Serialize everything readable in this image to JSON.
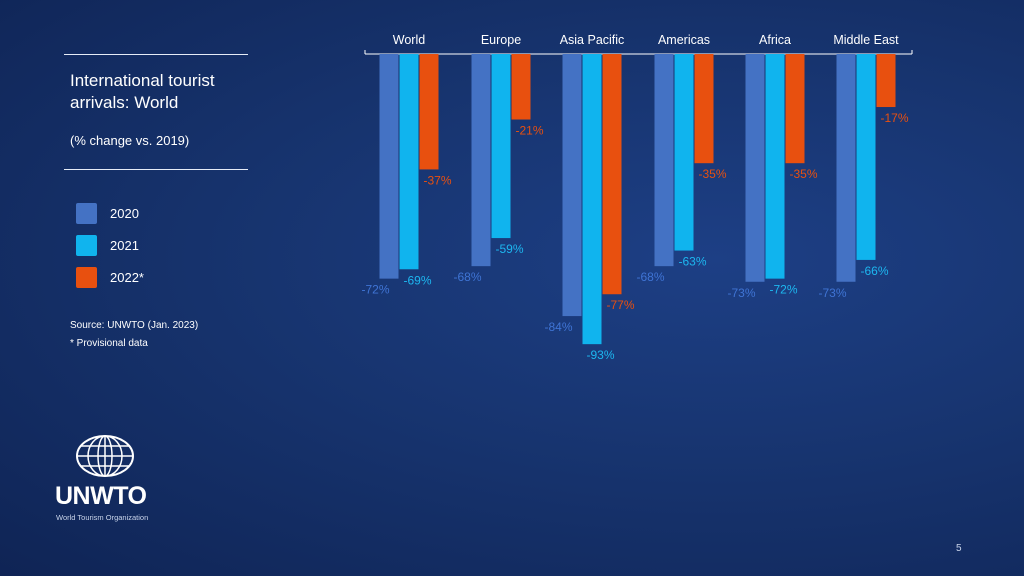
{
  "slide": {
    "title": "International tourist arrivals: World",
    "subtitle": "(% change vs. 2019)",
    "source": "Source: UNWTO (Jan. 2023)",
    "note": "* Provisional data",
    "page_number": "5",
    "logo": {
      "name": "UNWTO",
      "tagline": "World Tourism Organization",
      "icon": "globe-icon"
    }
  },
  "legend": [
    {
      "label": "2020",
      "color": "#4472c4"
    },
    {
      "label": "2021",
      "color": "#10b4ee"
    },
    {
      "label": "2022*",
      "color": "#e8500f"
    }
  ],
  "chart_data": {
    "type": "bar",
    "title": "International tourist arrivals: World",
    "ylabel": "",
    "xlabel": "",
    "y_unit": "% change vs. 2019",
    "categories": [
      "World",
      "Europe",
      "Asia Pacific",
      "Americas",
      "Africa",
      "Middle East"
    ],
    "category_axis_position": "top",
    "ylim": [
      -100,
      0
    ],
    "grid": false,
    "legend_position": "left",
    "series": [
      {
        "name": "2020",
        "color": "#4472c4",
        "label_color": "#3f74d4",
        "values": [
          -72,
          -68,
          -84,
          -68,
          -73,
          -73
        ],
        "labels": [
          "-72%",
          "-68%",
          "-84%",
          "-68%",
          "-73%",
          "-73%"
        ]
      },
      {
        "name": "2021",
        "color": "#10b4ee",
        "label_color": "#1db7f0",
        "values": [
          -69,
          -59,
          -93,
          -63,
          -72,
          -66
        ],
        "labels": [
          "-69%",
          "-59%",
          "-93%",
          "-63%",
          "-72%",
          "-66%"
        ]
      },
      {
        "name": "2022*",
        "color": "#e8500f",
        "label_color": "#e8500f",
        "values": [
          -37,
          -21,
          -77,
          -35,
          -35,
          -17
        ],
        "labels": [
          "-37%",
          "-21%",
          "-77%",
          "-35%",
          "-35%",
          "-17%"
        ]
      }
    ]
  }
}
